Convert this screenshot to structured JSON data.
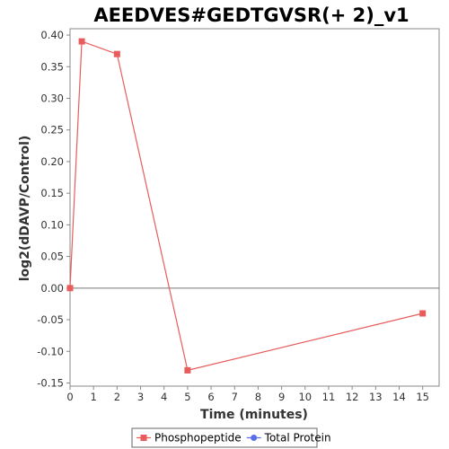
{
  "chart_data": {
    "type": "line",
    "title": "AEEDVES#GEDTGVSR(+ 2)_v1",
    "xlabel": "Time (minutes)",
    "ylabel": "log2(dDAVP/Control)",
    "xlim": [
      0,
      15.7
    ],
    "ylim": [
      -0.155,
      0.41
    ],
    "xticks": [
      0,
      1,
      2,
      3,
      4,
      5,
      6,
      7,
      8,
      9,
      10,
      11,
      12,
      13,
      14,
      15
    ],
    "yticks": [
      -0.15,
      -0.1,
      -0.05,
      0.0,
      0.05,
      0.1,
      0.15,
      0.2,
      0.25,
      0.3,
      0.35,
      0.4
    ],
    "grid": false,
    "zero_line": true,
    "legend_position": "bottom",
    "series": [
      {
        "name": "Phosphopeptide",
        "color": "#e85c5c",
        "marker": "square",
        "x": [
          0,
          0.5,
          2,
          5,
          15
        ],
        "y": [
          0.0,
          0.39,
          0.37,
          -0.13,
          -0.04
        ]
      },
      {
        "name": "Total Protein",
        "color": "#5b6ee8",
        "marker": "circle",
        "x": [],
        "y": []
      }
    ]
  }
}
